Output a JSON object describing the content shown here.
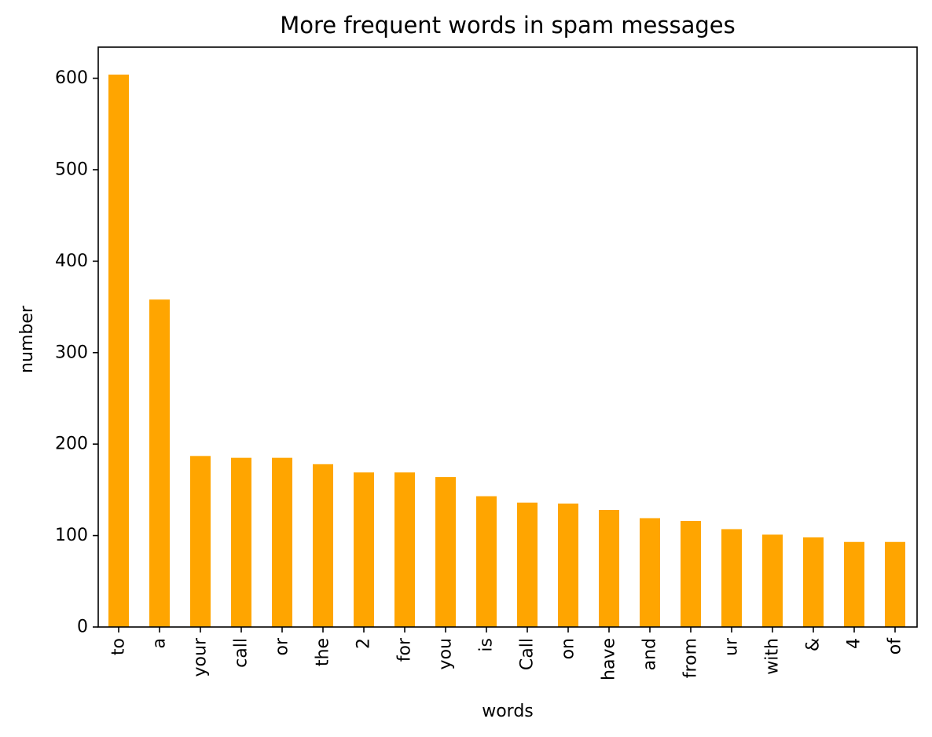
{
  "chart_data": {
    "type": "bar",
    "title": "More frequent words in spam messages",
    "xlabel": "words",
    "ylabel": "number",
    "categories": [
      "to",
      "a",
      "your",
      "call",
      "or",
      "the",
      "2",
      "for",
      "you",
      "is",
      "Call",
      "on",
      "have",
      "and",
      "from",
      "ur",
      "with",
      "&",
      "4",
      "of"
    ],
    "values": [
      604,
      358,
      187,
      185,
      185,
      178,
      169,
      169,
      164,
      143,
      136,
      135,
      128,
      119,
      116,
      107,
      101,
      98,
      93,
      93
    ],
    "ylim": [
      0,
      634
    ],
    "yticks": [
      0,
      100,
      200,
      300,
      400,
      500,
      600
    ],
    "bar_color": "#ffa500",
    "grid": false,
    "legend": "none"
  }
}
